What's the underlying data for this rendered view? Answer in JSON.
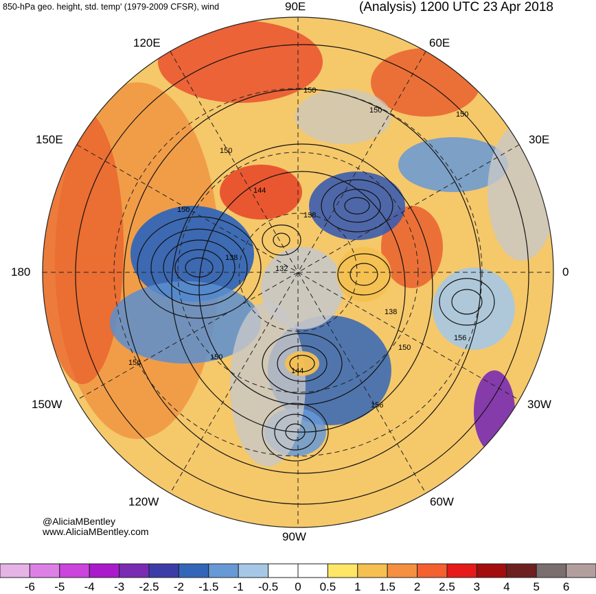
{
  "header": {
    "left_title": "850-hPa geo. height, std. temp' (1979-2009 CFSR), wind",
    "right_title": "(Analysis) 1200 UTC 23 Apr 2018"
  },
  "longitude_labels": {
    "e90": "90E",
    "e60": "60E",
    "e120": "120E",
    "e150": "150E",
    "e30": "30E",
    "d180": "180",
    "d0": "0",
    "w150": "150W",
    "w30": "30W",
    "w120": "120W",
    "w60": "60W",
    "w90": "90W"
  },
  "contour_labels": [
    "150",
    "150",
    "150",
    "150",
    "144",
    "138",
    "150",
    "138",
    "132",
    "138",
    "150",
    "156",
    "156",
    "150",
    "144",
    "156"
  ],
  "credits": {
    "handle": "@AliciaMBentley",
    "website": "www.AliciaMBentley.com"
  },
  "colorbar": {
    "ticks": [
      "-6",
      "-5",
      "-4",
      "-3",
      "-2.5",
      "-2",
      "-1.5",
      "-1",
      "-0.5",
      "0",
      "0.5",
      "1",
      "1.5",
      "2",
      "2.5",
      "3",
      "4",
      "5",
      "6"
    ],
    "colors": [
      "#e6b3e6",
      "#dd80e6",
      "#cc44dd",
      "#aa1acc",
      "#7a2bb3",
      "#3c3ca8",
      "#3366b8",
      "#6699d6",
      "#a6c8e6",
      "#ffffff",
      "#ffffff",
      "#ffe666",
      "#f5c050",
      "#f59040",
      "#f56030",
      "#e61a1a",
      "#a30d0d",
      "#6e2020",
      "#7a6e6e",
      "#b39e9e"
    ]
  }
}
